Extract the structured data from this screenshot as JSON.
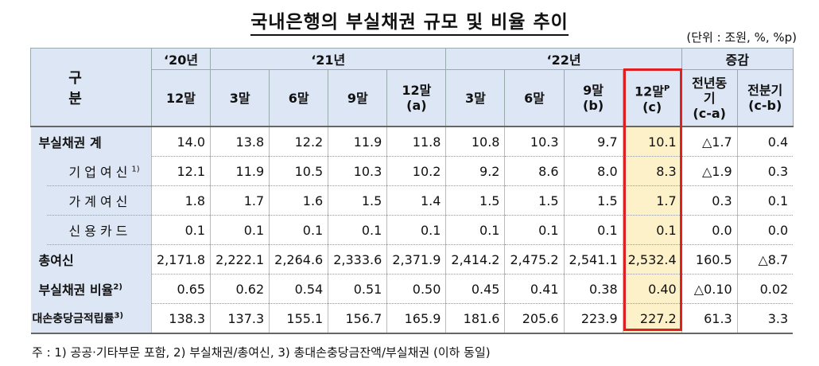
{
  "title": "국내은행의 부실채권 규모 및 비율 추이",
  "unit": "(단위 : 조원, %, %p)",
  "header": {
    "corner": "구 분",
    "year_2020": "‘20년",
    "year_2021": "‘21년",
    "year_2022": "‘22년",
    "change": "증감",
    "cols": [
      {
        "line1": "12말",
        "line2": ""
      },
      {
        "line1": "3말",
        "line2": ""
      },
      {
        "line1": "6말",
        "line2": ""
      },
      {
        "line1": "9말",
        "line2": ""
      },
      {
        "line1": "12말",
        "line2": "(a)"
      },
      {
        "line1": "3말",
        "line2": ""
      },
      {
        "line1": "6말",
        "line2": ""
      },
      {
        "line1": "9말",
        "line2": "(b)"
      },
      {
        "line1": "12말",
        "sup": "P",
        "line2": "(c)"
      },
      {
        "line1": "전년동기",
        "line2": "(c-a)"
      },
      {
        "line1": "전분기",
        "line2": "(c-b)"
      }
    ]
  },
  "rows": [
    {
      "label": "부실채권 계",
      "sup": "",
      "values": [
        "14.0",
        "13.8",
        "12.2",
        "11.9",
        "11.8",
        "10.8",
        "10.3",
        "9.7",
        "10.1",
        "△1.7",
        "0.4"
      ]
    },
    {
      "label": "기업여신",
      "sup": "1)",
      "values": [
        "12.1",
        "11.9",
        "10.5",
        "10.3",
        "10.2",
        "9.2",
        "8.6",
        "8.0",
        "8.3",
        "△1.9",
        "0.3"
      ]
    },
    {
      "label": "가계여신",
      "sup": "",
      "values": [
        "1.8",
        "1.7",
        "1.6",
        "1.5",
        "1.4",
        "1.5",
        "1.5",
        "1.5",
        "1.7",
        "0.3",
        "0.1"
      ]
    },
    {
      "label": "신용카드",
      "sup": "",
      "values": [
        "0.1",
        "0.1",
        "0.1",
        "0.1",
        "0.1",
        "0.1",
        "0.1",
        "0.1",
        "0.1",
        "0.0",
        "0.0"
      ]
    },
    {
      "label": "총여신",
      "sup": "",
      "values": [
        "2,171.8",
        "2,222.1",
        "2,264.6",
        "2,333.6",
        "2,371.9",
        "2,414.2",
        "2,475.2",
        "2,541.1",
        "2,532.4",
        "160.5",
        "△8.7"
      ]
    },
    {
      "label": "부실채권 비율",
      "sup": "2)",
      "values": [
        "0.65",
        "0.62",
        "0.54",
        "0.51",
        "0.50",
        "0.45",
        "0.41",
        "0.38",
        "0.40",
        "△0.10",
        "0.02"
      ]
    },
    {
      "label": "대손충당금적립률",
      "sup": "3)",
      "values": [
        "138.3",
        "137.3",
        "155.1",
        "156.7",
        "165.9",
        "181.6",
        "205.6",
        "223.9",
        "227.2",
        "61.3",
        "3.3"
      ]
    }
  ],
  "note": "주 : 1) 공공·기타부문 포함,   2) 부실채권/총여신,   3) 총대손충당금잔액/부실채권 (이하 동일)"
}
